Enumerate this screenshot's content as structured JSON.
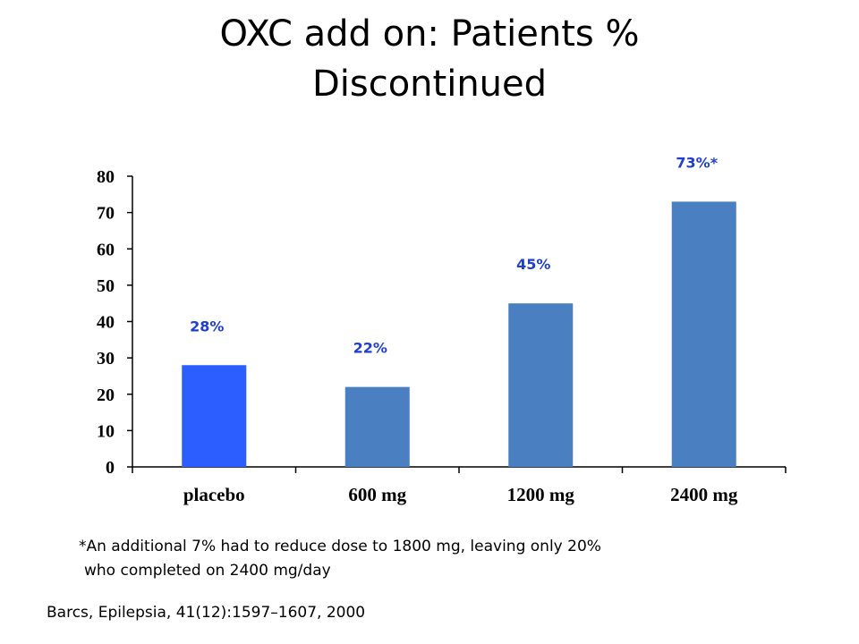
{
  "title": {
    "line1": "OXC add on: Patients %",
    "line2": "Discontinued"
  },
  "chart_data": {
    "type": "bar",
    "title": "",
    "xlabel": "",
    "ylabel": "",
    "categories": [
      "placebo",
      "600 mg",
      "1200 mg",
      "2400 mg"
    ],
    "values": [
      28,
      22,
      45,
      73
    ],
    "data_labels": [
      "28%",
      "22%",
      "45%",
      "73%*"
    ],
    "ylim": [
      0,
      80
    ],
    "yticks": [
      0,
      10,
      20,
      30,
      40,
      50,
      60,
      70,
      80
    ],
    "grid": false,
    "bar_colors": [
      "#2b5dff",
      "#4a7fc1",
      "#4a7fc1",
      "#4a7fc1"
    ],
    "label_color": "#1f3fd1"
  },
  "footnote": {
    "line1": "*An additional 7% had to reduce dose to 1800 mg, leaving only 20%",
    "line2": "who completed on 2400 mg/day"
  },
  "citation": "Barcs, Epilepsia, 41(12):1597–1607, 2000"
}
